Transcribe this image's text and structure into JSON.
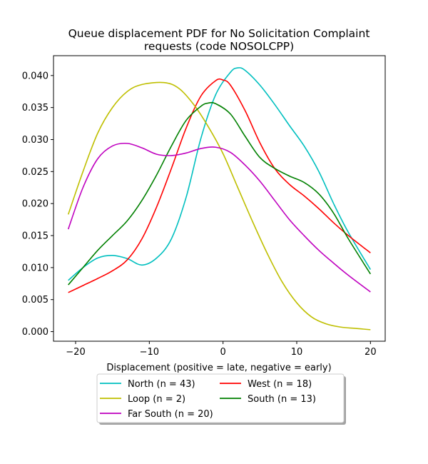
{
  "chart_data": {
    "type": "line",
    "title_lines": [
      "Queue displacement PDF for No Solicitation Complaint",
      "requests (code NOSOLCPP)"
    ],
    "xlabel": "Displacement (positive = late, negative = early)",
    "ylabel": "",
    "xlim": [
      -23,
      22
    ],
    "ylim": [
      -0.0015,
      0.0431
    ],
    "xticks": [
      -20,
      -10,
      0,
      10,
      20
    ],
    "xtick_labels": [
      "−20",
      "−10",
      "0",
      "10",
      "20"
    ],
    "yticks": [
      0.0,
      0.005,
      0.01,
      0.015,
      0.02,
      0.025,
      0.03,
      0.035,
      0.04
    ],
    "ytick_labels": [
      "0.000",
      "0.005",
      "0.010",
      "0.015",
      "0.020",
      "0.025",
      "0.030",
      "0.035",
      "0.040"
    ],
    "grid": false,
    "legend": {
      "position": "below",
      "columns": 2
    },
    "series": [
      {
        "name": "North (n = 43)",
        "color": "#00bfbf",
        "points": [
          [
            -21,
            0.008
          ],
          [
            -19,
            0.01
          ],
          [
            -17,
            0.0115
          ],
          [
            -15,
            0.0119
          ],
          [
            -13,
            0.0114
          ],
          [
            -11,
            0.0104
          ],
          [
            -9,
            0.0115
          ],
          [
            -7,
            0.0145
          ],
          [
            -5,
            0.021
          ],
          [
            -3,
            0.0302
          ],
          [
            -1,
            0.037
          ],
          [
            1,
            0.0405
          ],
          [
            2,
            0.0412
          ],
          [
            3,
            0.0408
          ],
          [
            5,
            0.0385
          ],
          [
            7,
            0.0355
          ],
          [
            9,
            0.0322
          ],
          [
            11,
            0.029
          ],
          [
            13,
            0.025
          ],
          [
            15,
            0.02
          ],
          [
            17,
            0.0155
          ],
          [
            20,
            0.0097
          ]
        ]
      },
      {
        "name": "West (n = 18)",
        "color": "#ff0000",
        "points": [
          [
            -21,
            0.0061
          ],
          [
            -19,
            0.0072
          ],
          [
            -17,
            0.0083
          ],
          [
            -15,
            0.0095
          ],
          [
            -13,
            0.0112
          ],
          [
            -11,
            0.0145
          ],
          [
            -9,
            0.0195
          ],
          [
            -7,
            0.0255
          ],
          [
            -5,
            0.0318
          ],
          [
            -3,
            0.0368
          ],
          [
            -1,
            0.0392
          ],
          [
            0,
            0.0393
          ],
          [
            1,
            0.0385
          ],
          [
            3,
            0.0345
          ],
          [
            5,
            0.0295
          ],
          [
            7,
            0.0255
          ],
          [
            9,
            0.023
          ],
          [
            11,
            0.0212
          ],
          [
            13,
            0.0192
          ],
          [
            15,
            0.017
          ],
          [
            17,
            0.015
          ],
          [
            20,
            0.0123
          ]
        ]
      },
      {
        "name": "Loop (n = 2)",
        "color": "#bfbf00",
        "points": [
          [
            -21,
            0.0183
          ],
          [
            -19,
            0.025
          ],
          [
            -17,
            0.031
          ],
          [
            -15,
            0.035
          ],
          [
            -13,
            0.0375
          ],
          [
            -11,
            0.0386
          ],
          [
            -8,
            0.0389
          ],
          [
            -6,
            0.038
          ],
          [
            -4,
            0.0355
          ],
          [
            -2,
            0.032
          ],
          [
            0,
            0.0278
          ],
          [
            2,
            0.0225
          ],
          [
            4,
            0.0172
          ],
          [
            6,
            0.0122
          ],
          [
            8,
            0.0078
          ],
          [
            10,
            0.0045
          ],
          [
            12,
            0.0023
          ],
          [
            14,
            0.0012
          ],
          [
            16,
            0.0007
          ],
          [
            18,
            0.0005
          ],
          [
            20,
            0.0003
          ]
        ]
      },
      {
        "name": "South (n = 13)",
        "color": "#008000",
        "points": [
          [
            -21,
            0.0073
          ],
          [
            -19,
            0.01
          ],
          [
            -17,
            0.0127
          ],
          [
            -15,
            0.015
          ],
          [
            -13,
            0.0173
          ],
          [
            -11,
            0.0205
          ],
          [
            -9,
            0.0245
          ],
          [
            -7,
            0.029
          ],
          [
            -5,
            0.033
          ],
          [
            -3,
            0.0352
          ],
          [
            -2,
            0.0357
          ],
          [
            -1,
            0.0356
          ],
          [
            1,
            0.034
          ],
          [
            3,
            0.0305
          ],
          [
            5,
            0.0272
          ],
          [
            7,
            0.0255
          ],
          [
            9,
            0.0243
          ],
          [
            11,
            0.0233
          ],
          [
            13,
            0.0215
          ],
          [
            15,
            0.0185
          ],
          [
            17,
            0.0145
          ],
          [
            20,
            0.009
          ]
        ]
      },
      {
        "name": "Far South (n = 20)",
        "color": "#bf00bf",
        "points": [
          [
            -21,
            0.016
          ],
          [
            -19,
            0.0225
          ],
          [
            -17,
            0.027
          ],
          [
            -15,
            0.029
          ],
          [
            -13,
            0.0294
          ],
          [
            -11,
            0.0287
          ],
          [
            -9,
            0.0277
          ],
          [
            -7,
            0.0275
          ],
          [
            -5,
            0.0279
          ],
          [
            -3,
            0.0286
          ],
          [
            -1,
            0.0288
          ],
          [
            1,
            0.028
          ],
          [
            3,
            0.026
          ],
          [
            5,
            0.0235
          ],
          [
            7,
            0.0205
          ],
          [
            9,
            0.0175
          ],
          [
            11,
            0.015
          ],
          [
            13,
            0.0127
          ],
          [
            15,
            0.0107
          ],
          [
            17,
            0.0088
          ],
          [
            20,
            0.0062
          ]
        ]
      }
    ]
  }
}
